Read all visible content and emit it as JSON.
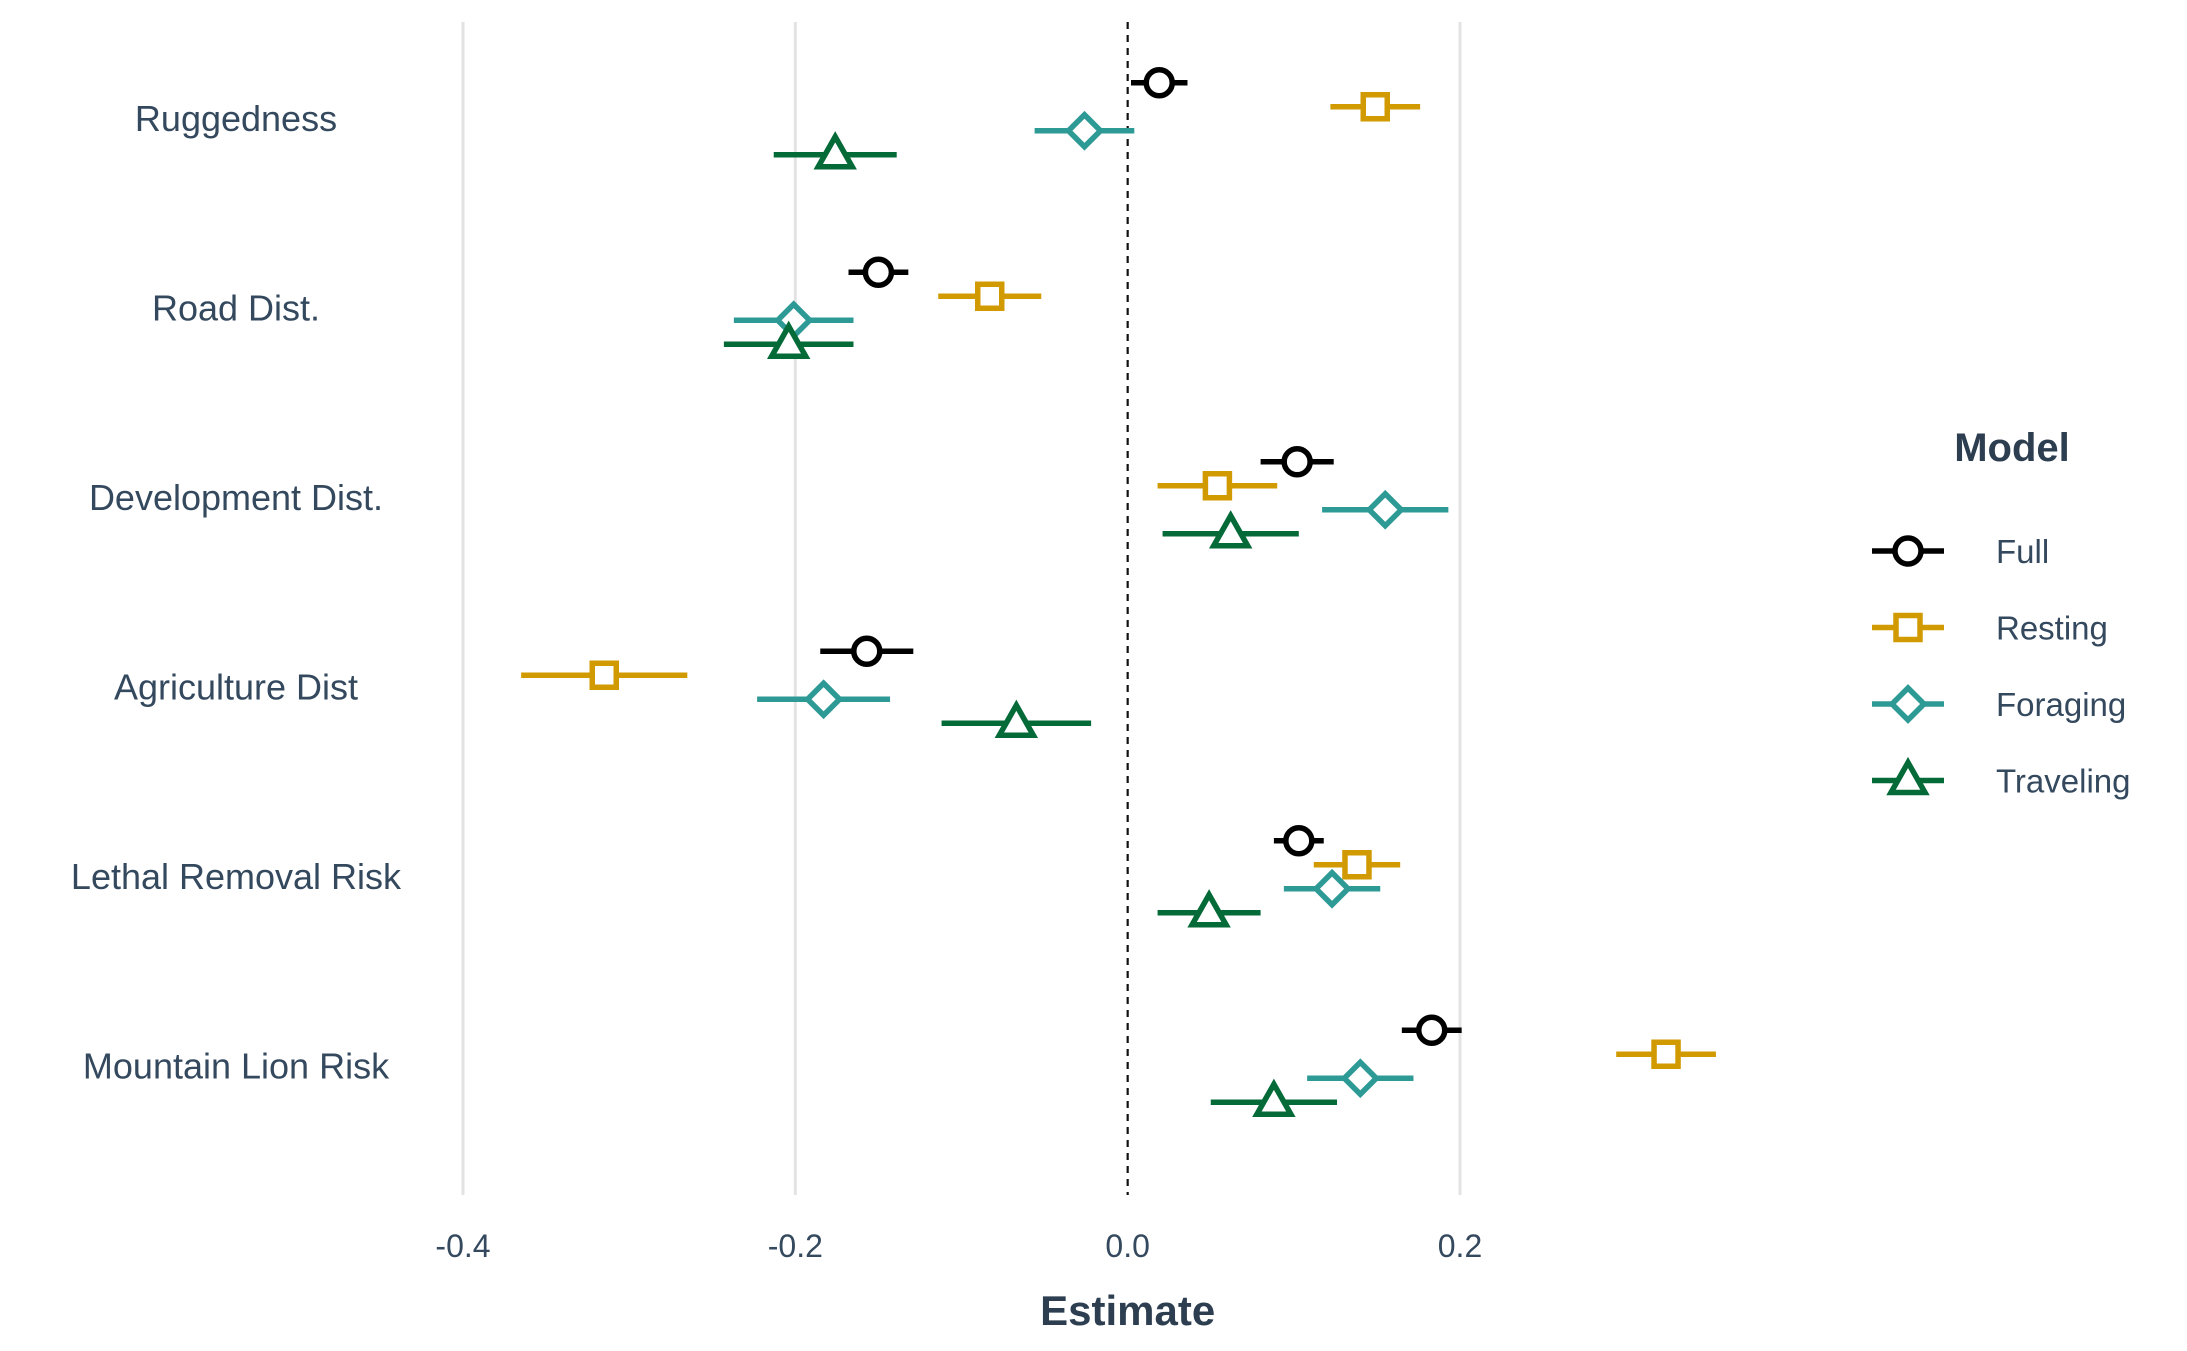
{
  "chart_data": {
    "type": "scatter",
    "subtype": "coefficient-plot-with-error-bars",
    "xlabel": "Estimate",
    "ylabel": "",
    "xlim": [
      -0.5,
      0.38
    ],
    "x_ticks": [
      {
        "value": -0.4,
        "label": "-0.4"
      },
      {
        "value": -0.2,
        "label": "-0.2"
      },
      {
        "value": 0.0,
        "label": "0.0"
      },
      {
        "value": 0.2,
        "label": "0.2"
      }
    ],
    "reference_line": {
      "x": 0,
      "style": "dashed"
    },
    "grid": "vertical major gridlines",
    "categories": [
      "Ruggedness",
      "Road Dist.",
      "Development Dist.",
      "Agriculture Dist",
      "Lethal Removal Risk",
      "Mountain Lion Risk"
    ],
    "legend": {
      "title": "Model",
      "position": "right"
    },
    "series": [
      {
        "name": "Full",
        "color": "#000000",
        "marker": "circle",
        "estimate": [
          0.019,
          -0.15,
          0.102,
          -0.157,
          0.103,
          0.183
        ],
        "lower": [
          0.002,
          -0.168,
          0.08,
          -0.185,
          0.088,
          0.165
        ],
        "upper": [
          0.036,
          -0.132,
          0.124,
          -0.129,
          0.118,
          0.201
        ]
      },
      {
        "name": "Resting",
        "color": "#d19a00",
        "marker": "square",
        "estimate": [
          0.149,
          -0.083,
          0.054,
          -0.315,
          0.138,
          0.324
        ],
        "lower": [
          0.122,
          -0.114,
          0.018,
          -0.365,
          0.112,
          0.294
        ],
        "upper": [
          0.176,
          -0.052,
          0.09,
          -0.265,
          0.164,
          0.354
        ]
      },
      {
        "name": "Foraging",
        "color": "#2e9a96",
        "marker": "diamond",
        "estimate": [
          -0.026,
          -0.201,
          0.155,
          -0.183,
          0.123,
          0.14
        ],
        "lower": [
          -0.056,
          -0.237,
          0.117,
          -0.223,
          0.094,
          0.108
        ],
        "upper": [
          0.004,
          -0.165,
          0.193,
          -0.143,
          0.152,
          0.172
        ]
      },
      {
        "name": "Traveling",
        "color": "#046a38",
        "marker": "triangle",
        "estimate": [
          -0.176,
          -0.204,
          0.062,
          -0.067,
          0.049,
          0.088
        ],
        "lower": [
          -0.213,
          -0.243,
          0.021,
          -0.112,
          0.018,
          0.05
        ],
        "upper": [
          -0.139,
          -0.165,
          0.103,
          -0.022,
          0.08,
          0.126
        ]
      }
    ]
  }
}
